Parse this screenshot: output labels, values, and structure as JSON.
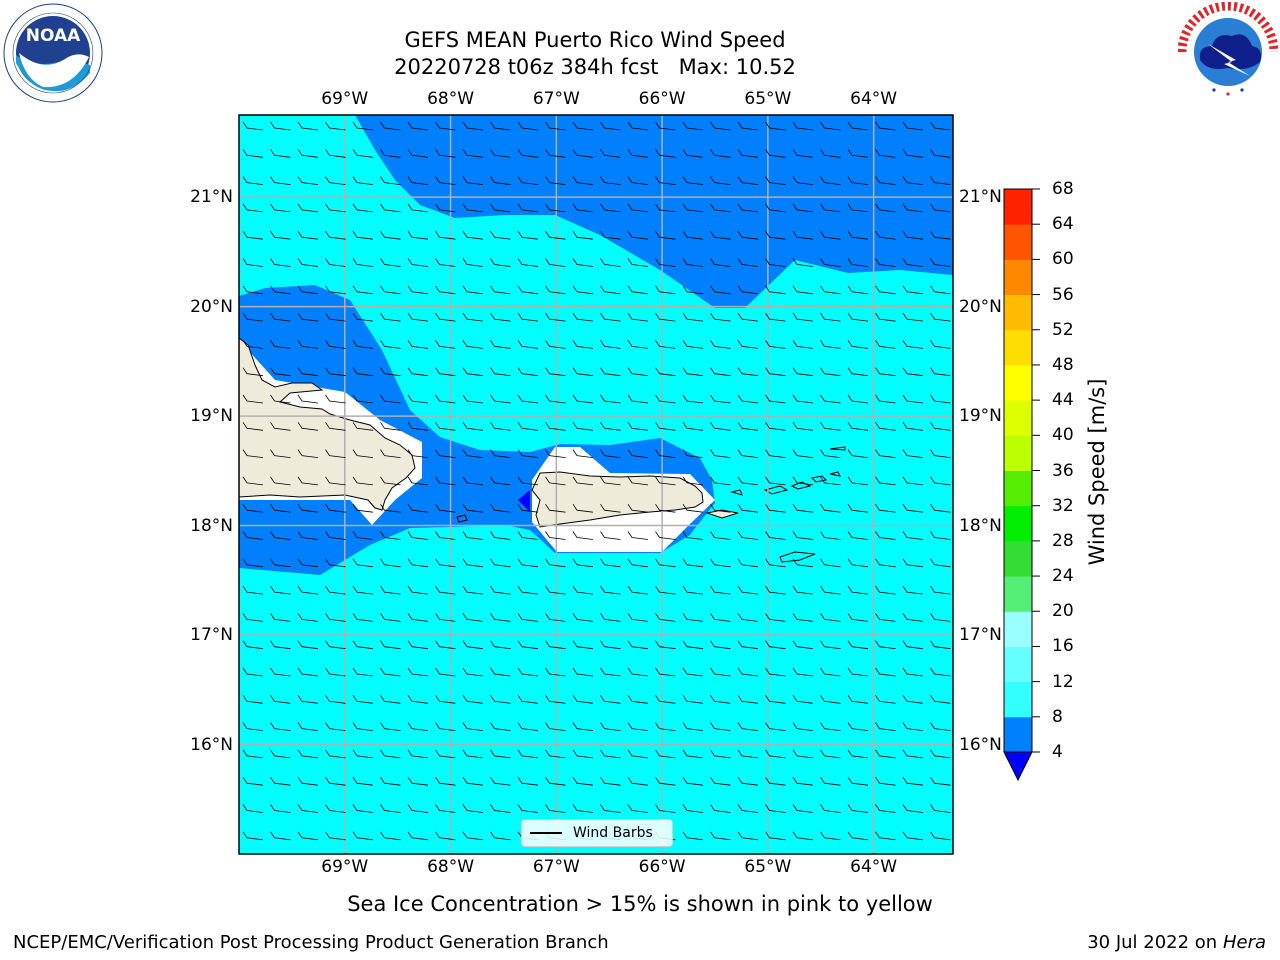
{
  "title": {
    "line1": "GEFS MEAN Puerto Rico Wind Speed",
    "line2": "20220728 t06z 384h fcst   Max: 10.52"
  },
  "logos": {
    "left": {
      "name": "NOAA",
      "text": "NOAA",
      "ring_text": "NATIONAL OCEANIC AND ATMOSPHERIC ADMINISTRATION · U.S. DEPARTMENT OF COMMERCE"
    },
    "right": {
      "name": "National Weather Service",
      "ring_text": "NATIONAL WEATHER SERVICE"
    }
  },
  "map": {
    "lon_ticks": [
      "69°W",
      "68°W",
      "67°W",
      "66°W",
      "65°W",
      "64°W"
    ],
    "lon_values": [
      -69,
      -68,
      -67,
      -66,
      -65,
      -64
    ],
    "lat_ticks": [
      "21°N",
      "20°N",
      "19°N",
      "18°N",
      "17°N",
      "16°N"
    ],
    "lat_values": [
      21,
      20,
      19,
      18,
      17,
      16
    ],
    "lon_range": [
      -70.0,
      -63.25
    ],
    "lat_range": [
      15.0,
      21.75
    ],
    "grid": true,
    "legend_label": "Wind Barbs",
    "colors": {
      "land": "#efebdb",
      "ocean_low": "#0080ff",
      "ocean_mid": "#00ffff",
      "calm": "#0000ff"
    }
  },
  "colorbar": {
    "label": "Wind Speed [m/s]",
    "ticks": [
      "68",
      "64",
      "60",
      "56",
      "52",
      "48",
      "44",
      "40",
      "36",
      "32",
      "28",
      "24",
      "20",
      "16",
      "12",
      "8",
      "4"
    ],
    "levels": [
      4,
      8,
      12,
      16,
      20,
      24,
      28,
      32,
      36,
      40,
      44,
      48,
      52,
      56,
      60,
      64,
      68
    ],
    "colors": [
      "#0080ff",
      "#00ffff",
      "#33ffff",
      "#66ffff",
      "#99ffff",
      "#55ee77",
      "#33dd33",
      "#00ee00",
      "#55ee00",
      "#bbff00",
      "#ddff00",
      "#ffff00",
      "#ffdd00",
      "#ffbb00",
      "#ff8800",
      "#ff5500",
      "#ff2200",
      "#ff0000"
    ],
    "under_color": "#0000ff"
  },
  "note": "Sea Ice Concentration > 15% is shown in pink to yellow",
  "footer": {
    "left": "NCEP/EMC/Verification Post Processing Product Generation Branch",
    "date": "30 Jul 2022 on ",
    "machine": "Hera"
  }
}
